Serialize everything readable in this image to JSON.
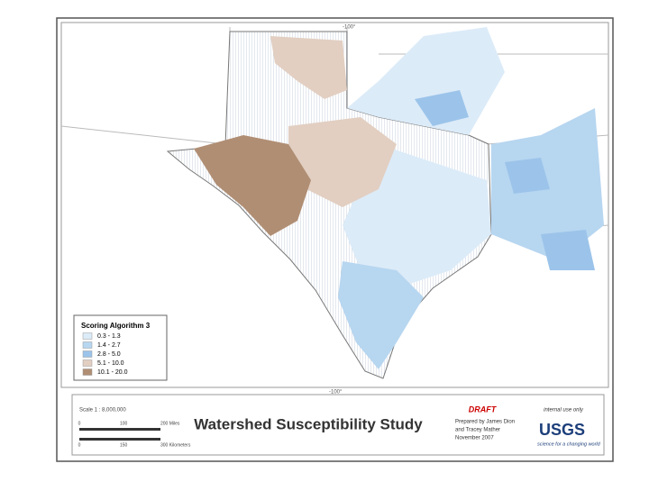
{
  "map": {
    "graticule": {
      "top": "-100°",
      "bottom": "-100°"
    },
    "legend": {
      "title": "Scoring Algorithm 3",
      "classes": [
        {
          "label": "0.3 - 1.3",
          "color": "#dcebf8"
        },
        {
          "label": "1.4 - 2.7",
          "color": "#b7d6f0"
        },
        {
          "label": "2.8 - 5.0",
          "color": "#9cc4ea"
        },
        {
          "label": "5.1 - 10.0",
          "color": "#e2cfc2"
        },
        {
          "label": "10.1 - 20.0",
          "color": "#b08e74"
        }
      ]
    }
  },
  "footer": {
    "scale": "Scale 1 : 8,000,000",
    "miles": [
      "0",
      "100",
      "200 Miles"
    ],
    "kilometers": [
      "0",
      "150",
      "300 Kilometers"
    ],
    "title": "Watershed Susceptibility Study",
    "draft": "DRAFT",
    "internal": "internal use only",
    "credits": [
      "Prepared by James Dion",
      "and Tracey Mather",
      "November 2007"
    ],
    "logo": "USGS",
    "tagline": "science for a changing world"
  }
}
